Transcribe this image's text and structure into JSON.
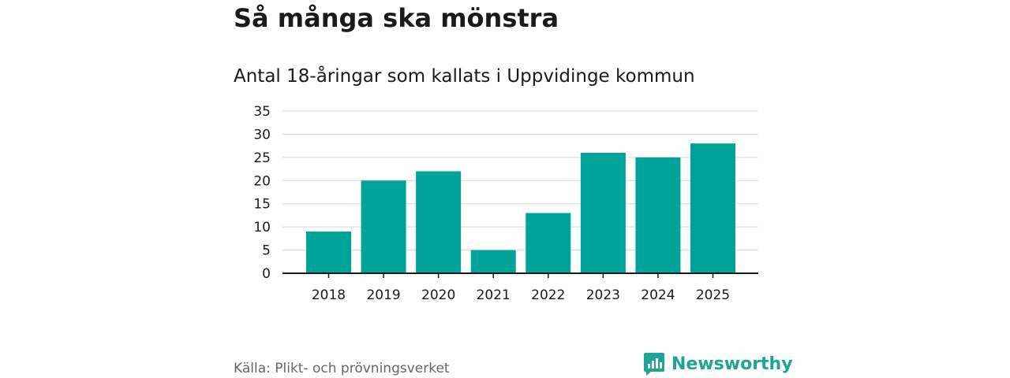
{
  "header": {
    "title": "Så många ska mönstra",
    "subtitle": "Antal 18-åringar som kallats i Uppvidinge kommun"
  },
  "chart_data": {
    "type": "bar",
    "title": "Så många ska mönstra",
    "subtitle": "Antal 18-åringar som kallats i Uppvidinge kommun",
    "categories": [
      "2018",
      "2019",
      "2020",
      "2021",
      "2022",
      "2023",
      "2024",
      "2025"
    ],
    "values": [
      9,
      20,
      22,
      5,
      13,
      26,
      25,
      28
    ],
    "xlabel": "",
    "ylabel": "",
    "ylim": [
      0,
      35
    ],
    "yticks": [
      0,
      5,
      10,
      15,
      20,
      25,
      30,
      35
    ],
    "grid": true,
    "bar_color": "#00a398"
  },
  "footer": {
    "source": "Källa: Plikt- och prövningsverket",
    "brand": "Newsworthy",
    "brand_color": "#1ea596"
  }
}
